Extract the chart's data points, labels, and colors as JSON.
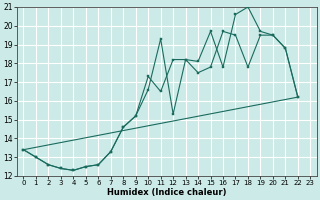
{
  "xlabel": "Humidex (Indice chaleur)",
  "bg_color": "#cceae7",
  "grid_color": "#b0d8d4",
  "line_color": "#1a6b5e",
  "xlim": [
    -0.5,
    23.5
  ],
  "ylim": [
    12,
    21
  ],
  "yticks": [
    12,
    13,
    14,
    15,
    16,
    17,
    18,
    19,
    20,
    21
  ],
  "xticks": [
    0,
    1,
    2,
    3,
    4,
    5,
    6,
    7,
    8,
    9,
    10,
    11,
    12,
    13,
    14,
    15,
    16,
    17,
    18,
    19,
    20,
    21,
    22,
    23
  ],
  "line1_x": [
    0,
    1,
    2,
    3,
    4,
    5,
    6,
    7,
    8,
    9,
    10,
    11,
    12,
    13,
    14,
    15,
    16,
    17,
    18,
    19,
    20,
    21,
    22
  ],
  "line1_y": [
    13.4,
    13.0,
    12.6,
    12.4,
    12.3,
    12.5,
    12.6,
    13.3,
    14.6,
    15.2,
    16.6,
    19.3,
    15.3,
    18.2,
    18.1,
    19.7,
    17.8,
    20.6,
    21.0,
    19.7,
    19.5,
    18.8,
    16.2
  ],
  "line2_x": [
    0,
    1,
    2,
    3,
    4,
    5,
    6,
    7,
    8,
    9,
    10,
    11,
    12,
    13,
    14,
    15,
    16,
    17,
    18,
    19,
    20,
    21,
    22
  ],
  "line2_y": [
    13.4,
    13.0,
    12.6,
    12.4,
    12.3,
    12.5,
    12.6,
    13.3,
    14.6,
    15.2,
    17.3,
    16.5,
    18.2,
    18.2,
    17.5,
    17.8,
    19.7,
    19.5,
    17.8,
    19.5,
    19.5,
    18.8,
    16.2
  ],
  "line3_x": [
    0,
    22
  ],
  "line3_y": [
    13.4,
    16.2
  ]
}
